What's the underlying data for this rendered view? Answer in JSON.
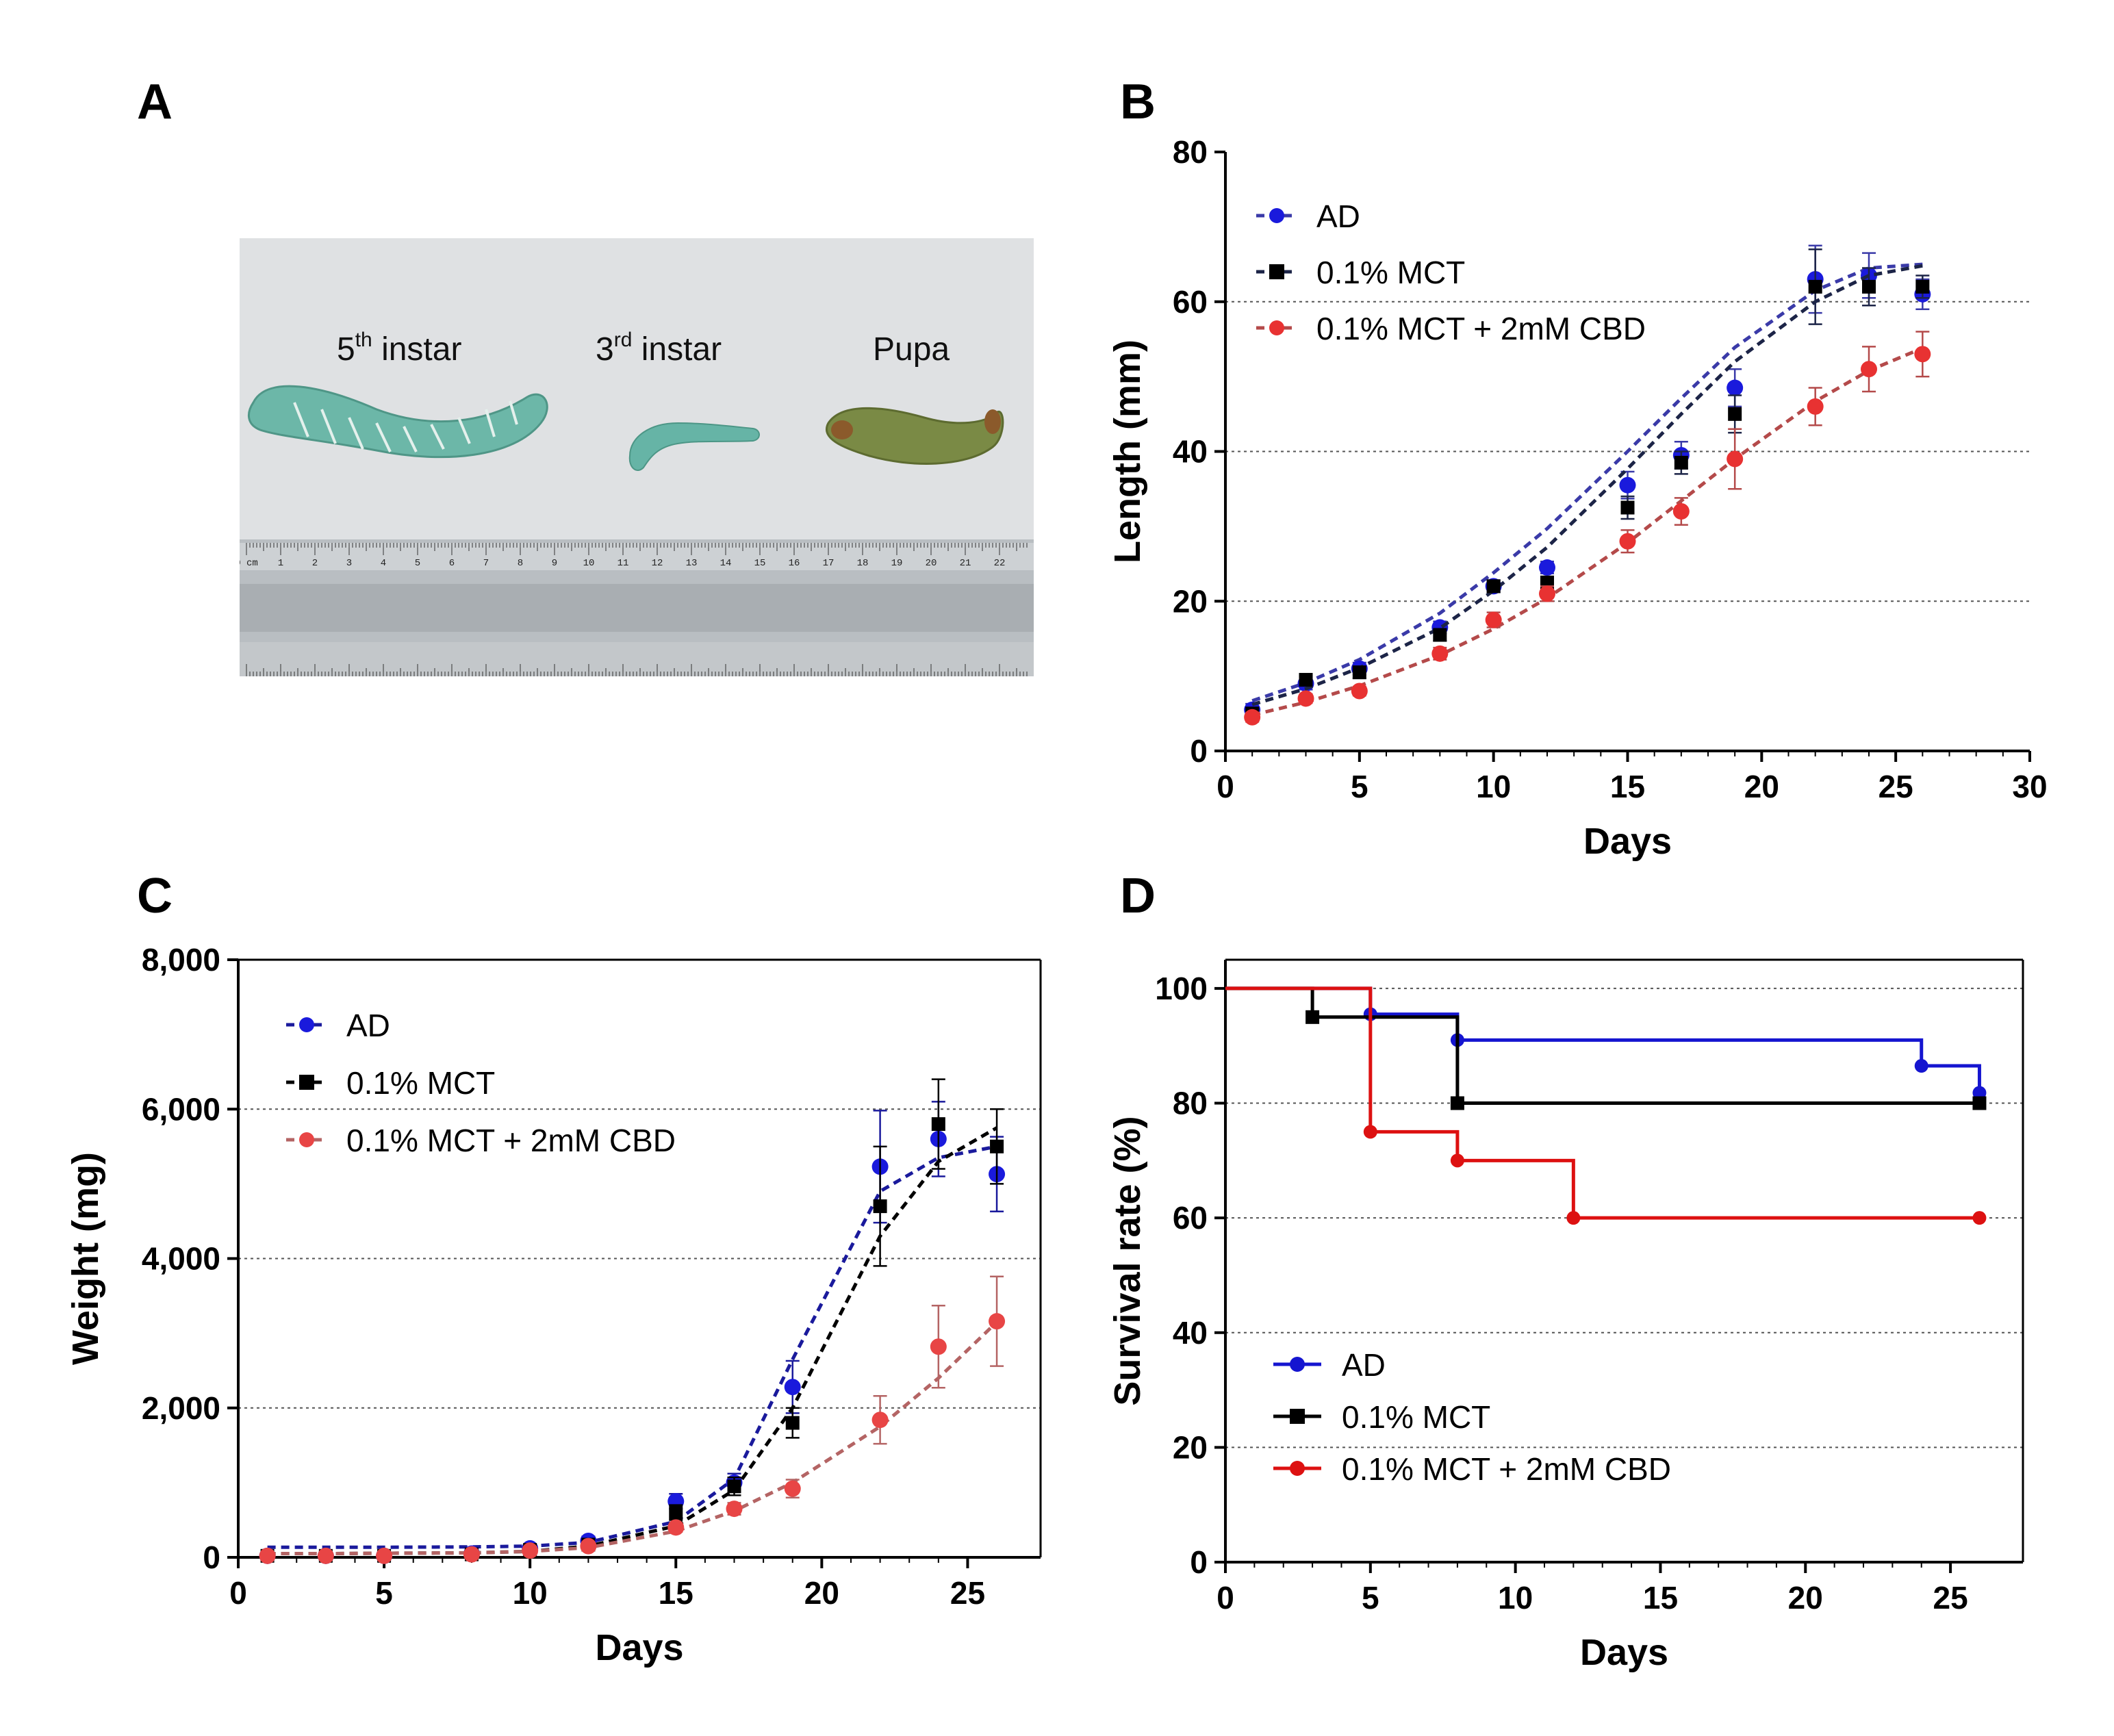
{
  "panel_labels": {
    "a": "A",
    "b": "B",
    "c": "C",
    "d": "D"
  },
  "photo": {
    "labels": [
      {
        "main": "5",
        "sup": "th",
        "rest": " instar"
      },
      {
        "main": "3",
        "sup": "rd",
        "rest": " instar"
      },
      {
        "main": "Pupa",
        "sup": "",
        "rest": ""
      }
    ],
    "ruler_top_labels": [
      "0 cm",
      "1",
      "2",
      "3",
      "4",
      "5",
      "6",
      "7",
      "8",
      "9",
      "10",
      "11",
      "12",
      "13",
      "14",
      "15",
      "16",
      "17",
      "18",
      "19",
      "20",
      "21",
      "22"
    ],
    "colors": {
      "background": "#d9dcde",
      "larva": "#6cb7a8",
      "pupa": "#7a8a45",
      "ruler": "#b9bec2"
    }
  },
  "legend_labels": [
    "AD",
    "0.1% MCT",
    "0.1% MCT + 2mM CBD"
  ],
  "chart_data": [
    {
      "panel": "B",
      "type": "scatter",
      "xlabel": "Days",
      "ylabel": "Length (mm)",
      "xlim": [
        0,
        30
      ],
      "ylim": [
        0,
        80
      ],
      "xticks": [
        0,
        5,
        10,
        15,
        20,
        25,
        30
      ],
      "yticks": [
        0,
        20,
        40,
        60,
        80
      ],
      "ytick_labels": [
        "0",
        "20",
        "40",
        "60",
        "80"
      ],
      "grid": "horizontal dotted at 20, 40, 60",
      "legend_position": "top-left",
      "series": [
        {
          "name": "AD",
          "color": "#1a1adc",
          "fit_color": "#3a3aa8",
          "marker": "circle",
          "x": [
            1,
            3,
            5,
            8,
            10,
            12,
            15,
            17,
            19,
            22,
            24,
            26
          ],
          "y": [
            5.5,
            9,
            11,
            16.5,
            22,
            24.5,
            35.5,
            39.5,
            48.5,
            63,
            63.5,
            61
          ],
          "err": [
            0.8,
            0.8,
            0.8,
            0.8,
            0.8,
            0.8,
            1.8,
            1.8,
            2.5,
            4.5,
            3,
            2
          ],
          "fit": [
            6.7,
            9.1,
            12.2,
            18.4,
            23.8,
            29.7,
            40.0,
            47.1,
            53.9,
            61.5,
            64.5,
            65.0
          ]
        },
        {
          "name": "0.1% MCT",
          "color": "#000000",
          "fit_color": "#1c2447",
          "marker": "square",
          "x": [
            1,
            3,
            5,
            8,
            10,
            12,
            15,
            17,
            19,
            22,
            24,
            26
          ],
          "y": [
            5,
            9.5,
            10.5,
            15.5,
            22,
            22.5,
            32.5,
            38.5,
            45,
            62,
            62,
            62
          ],
          "err": [
            0.8,
            0.8,
            0.8,
            0.8,
            0.8,
            0.8,
            1.5,
            1.5,
            2.5,
            5,
            2.5,
            1.5
          ],
          "fit": [
            6.2,
            8.3,
            11.1,
            16.4,
            21.4,
            27.2,
            37.7,
            45.0,
            52.0,
            60.0,
            63.5,
            64.8
          ]
        },
        {
          "name": "0.1% MCT + 2mM CBD",
          "color": "#e83232",
          "fit_color": "#b44a4a",
          "marker": "circle",
          "x": [
            1,
            3,
            5,
            8,
            10,
            12,
            15,
            17,
            19,
            22,
            24,
            26
          ],
          "y": [
            4.5,
            7,
            8,
            13,
            17.5,
            21,
            28,
            32,
            39,
            46,
            51,
            53
          ],
          "err": [
            0.6,
            0.6,
            0.6,
            0.8,
            1,
            1,
            1.5,
            1.8,
            4,
            2.5,
            3,
            3
          ],
          "fit": [
            4.8,
            6.5,
            8.7,
            12.8,
            16.3,
            20.4,
            27.8,
            33.4,
            39.0,
            46.7,
            50.8,
            53.8
          ]
        }
      ]
    },
    {
      "panel": "C",
      "type": "scatter",
      "xlabel": "Days",
      "ylabel": "Weight (mg)",
      "xlim": [
        0,
        27.5
      ],
      "ylim": [
        0,
        8000
      ],
      "xticks": [
        0,
        5,
        10,
        15,
        20,
        25
      ],
      "yticks": [
        0,
        2000,
        4000,
        6000,
        8000
      ],
      "ytick_labels": [
        "0",
        "2,000",
        "4,000",
        "6,000",
        "8,000"
      ],
      "grid": "horizontal dotted at 2,000, 4,000, 6,000",
      "legend_position": "top-left",
      "series": [
        {
          "name": "AD",
          "color": "#1a1adc",
          "fit_color": "#1a1a9c",
          "marker": "circle",
          "x": [
            1,
            3,
            5,
            8,
            10,
            12,
            15,
            17,
            19,
            22,
            24,
            26
          ],
          "y": [
            20,
            20,
            20,
            50,
            120,
            220,
            750,
            1000,
            2280,
            5230,
            5600,
            5130
          ],
          "err": [
            10,
            10,
            10,
            20,
            40,
            60,
            100,
            120,
            350,
            750,
            500,
            500
          ],
          "fit": [
            135,
            135,
            135,
            140,
            150,
            200,
            480,
            1050,
            2650,
            4900,
            5350,
            5500
          ]
        },
        {
          "name": "0.1% MCT",
          "color": "#000000",
          "fit_color": "#000000",
          "marker": "square",
          "x": [
            1,
            3,
            5,
            8,
            10,
            12,
            15,
            17,
            19,
            22,
            24,
            26
          ],
          "y": [
            20,
            20,
            20,
            40,
            100,
            170,
            600,
            950,
            1800,
            4700,
            5800,
            5500
          ],
          "err": [
            10,
            10,
            10,
            20,
            40,
            50,
            100,
            120,
            200,
            800,
            600,
            500
          ],
          "fit": [
            50,
            50,
            55,
            60,
            80,
            150,
            420,
            900,
            2000,
            4300,
            5300,
            5750
          ]
        },
        {
          "name": "0.1% MCT + 2mM CBD",
          "color": "#e84545",
          "fit_color": "#b46464",
          "marker": "circle",
          "x": [
            1,
            3,
            5,
            8,
            10,
            12,
            15,
            17,
            19,
            22,
            24,
            26
          ],
          "y": [
            20,
            20,
            20,
            40,
            90,
            150,
            400,
            650,
            920,
            1840,
            2820,
            3160
          ],
          "err": [
            10,
            10,
            10,
            20,
            30,
            40,
            60,
            80,
            120,
            320,
            550,
            600
          ],
          "fit": [
            50,
            50,
            55,
            60,
            80,
            130,
            350,
            620,
            1000,
            1750,
            2400,
            3150
          ]
        }
      ]
    },
    {
      "panel": "D",
      "type": "line",
      "style": "step",
      "xlabel": "Days",
      "ylabel": "Survival rate (%)",
      "xlim": [
        0,
        27.5
      ],
      "ylim": [
        0,
        105
      ],
      "xticks": [
        0,
        5,
        10,
        15,
        20,
        25
      ],
      "yticks": [
        0,
        20,
        40,
        60,
        80,
        100
      ],
      "ytick_labels": [
        "0",
        "20",
        "40",
        "60",
        "80",
        "100"
      ],
      "grid": "horizontal dotted at 20, 40, 60, 80, 100",
      "legend_position": "bottom-left",
      "series": [
        {
          "name": "AD",
          "color": "#1515d0",
          "marker": "circle",
          "steps": [
            [
              0,
              100
            ],
            [
              5,
              95.5
            ],
            [
              8,
              91
            ],
            [
              24,
              86.5
            ],
            [
              26,
              81.8
            ]
          ]
        },
        {
          "name": "0.1% MCT",
          "color": "#000000",
          "marker": "square",
          "steps": [
            [
              0,
              100
            ],
            [
              3,
              95
            ],
            [
              8,
              80
            ],
            [
              26,
              80
            ]
          ]
        },
        {
          "name": "0.1% MCT + 2mM CBD",
          "color": "#dd1111",
          "marker": "circle",
          "steps": [
            [
              0,
              100
            ],
            [
              5,
              75
            ],
            [
              8,
              70
            ],
            [
              12,
              60
            ],
            [
              26,
              60
            ]
          ]
        }
      ]
    }
  ]
}
